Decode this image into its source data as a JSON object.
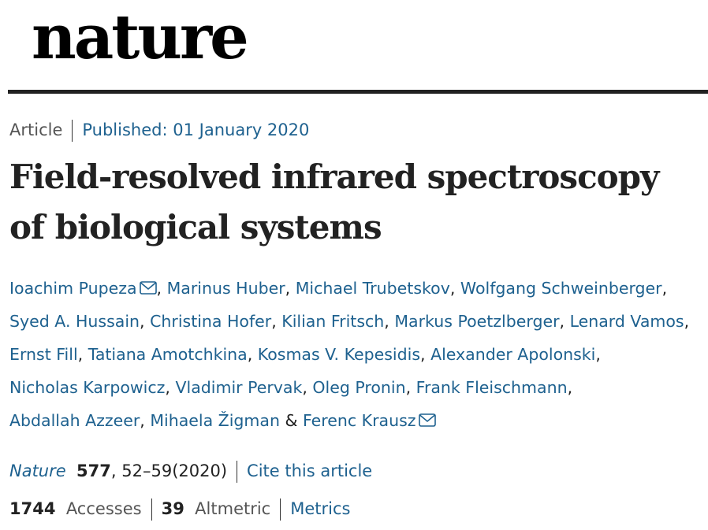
{
  "header": {
    "logo": "nature"
  },
  "article": {
    "type": "Article",
    "published_label": "Published:",
    "published_date": "01 January 2020",
    "title": "Field-resolved infrared spectroscopy of biological systems",
    "authors": [
      {
        "name": "Ioachim Pupeza",
        "email": true
      },
      {
        "name": "Marinus Huber"
      },
      {
        "name": "Michael Trubetskov"
      },
      {
        "name": "Wolfgang Schweinberger"
      },
      {
        "name": "Syed A. Hussain"
      },
      {
        "name": "Christina Hofer"
      },
      {
        "name": "Kilian Fritsch"
      },
      {
        "name": "Markus Poetzlberger"
      },
      {
        "name": "Lenard Vamos"
      },
      {
        "name": "Ernst Fill"
      },
      {
        "name": "Tatiana Amotchkina"
      },
      {
        "name": "Kosmas V. Kepesidis"
      },
      {
        "name": "Alexander Apolonski"
      },
      {
        "name": "Nicholas Karpowicz"
      },
      {
        "name": "Vladimir Pervak"
      },
      {
        "name": "Oleg Pronin"
      },
      {
        "name": "Frank Fleischmann"
      },
      {
        "name": "Abdallah Azzeer"
      },
      {
        "name": "Mihaela Žigman"
      },
      {
        "name": "Ferenc Krausz",
        "email": true
      }
    ],
    "separator": ",",
    "final_separator": "&",
    "journal": "Nature",
    "volume": "577",
    "pages": ", 52–59",
    "year": "(2020)",
    "cite": "Cite this article",
    "metrics": {
      "accesses": 1744,
      "accesses_label": "Accesses",
      "altmetric": 39,
      "altmetric_label": "Altmetric",
      "link": "Metrics"
    }
  }
}
